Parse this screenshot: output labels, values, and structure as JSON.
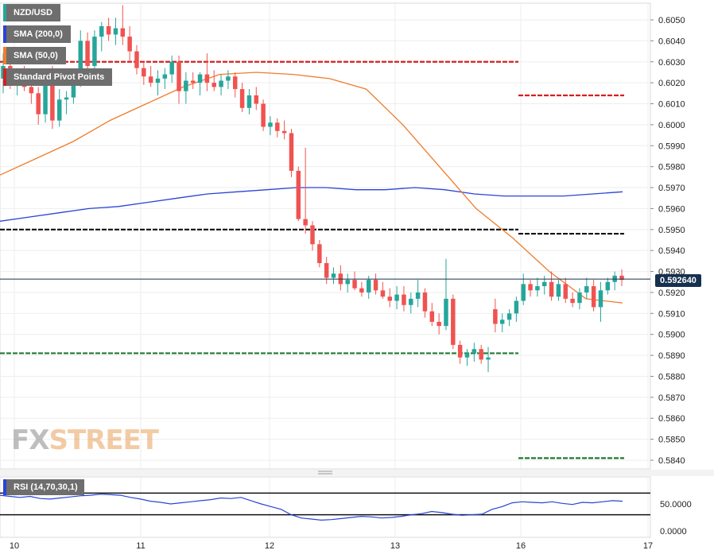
{
  "legend": {
    "symbol": "NZD/USD",
    "sma200": "SMA (200,0)",
    "sma50": "SMA (50,0)",
    "pivots": "Standard Pivot Points"
  },
  "rsi_label": "RSI (14,70,30,1)",
  "current_price": "0.592640",
  "watermark": {
    "fx": "FX",
    "street": "STREET"
  },
  "colors": {
    "bull": "#26a69a",
    "bear": "#ef5350",
    "sma200": "#2a44d6",
    "sma50": "#f07c2a",
    "pivot_red": "#d42020",
    "pivot_black": "#111111",
    "pivot_green": "#1f7a32",
    "rsi": "#2a44d6",
    "price_tag": "#16304f"
  },
  "chart_data": {
    "type": "candlestick",
    "title": "NZD/USD",
    "interval": "1h",
    "ylim": [
      0.5835,
      0.6057
    ],
    "y_ticks": [
      "0.6050",
      "0.6040",
      "0.6030",
      "0.6020",
      "0.6010",
      "0.6000",
      "0.5990",
      "0.5980",
      "0.5970",
      "0.5960",
      "0.5950",
      "0.5940",
      "0.5930",
      "0.5920",
      "0.5910",
      "0.5900",
      "0.5890",
      "0.5880",
      "0.5870",
      "0.5860",
      "0.5850",
      "0.5840"
    ],
    "x_ticks": [
      "10",
      "11",
      "12",
      "13",
      "16",
      "17"
    ],
    "last_price": 0.59264,
    "candles": [
      [
        0.6022,
        0.6034,
        0.6015,
        0.6028
      ],
      [
        0.6028,
        0.603,
        0.6017,
        0.602
      ],
      [
        0.602,
        0.6027,
        0.6014,
        0.6024
      ],
      [
        0.6024,
        0.6028,
        0.6016,
        0.6018
      ],
      [
        0.6018,
        0.6023,
        0.601,
        0.6015
      ],
      [
        0.6015,
        0.6018,
        0.6,
        0.6005
      ],
      [
        0.6005,
        0.6027,
        0.6001,
        0.6024
      ],
      [
        0.6024,
        0.6028,
        0.5998,
        0.6002
      ],
      [
        0.6002,
        0.6017,
        0.5999,
        0.6012
      ],
      [
        0.6012,
        0.6016,
        0.6005,
        0.6013
      ],
      [
        0.6013,
        0.6024,
        0.601,
        0.6022
      ],
      [
        0.6022,
        0.6045,
        0.6018,
        0.604
      ],
      [
        0.604,
        0.6044,
        0.6024,
        0.6028
      ],
      [
        0.6028,
        0.6045,
        0.6026,
        0.6042
      ],
      [
        0.6042,
        0.6049,
        0.6035,
        0.6047
      ],
      [
        0.6047,
        0.6051,
        0.604,
        0.6043
      ],
      [
        0.6043,
        0.6051,
        0.6038,
        0.6046
      ],
      [
        0.6046,
        0.6057,
        0.6038,
        0.6042
      ],
      [
        0.6042,
        0.6047,
        0.603,
        0.6035
      ],
      [
        0.6035,
        0.6038,
        0.6024,
        0.6027
      ],
      [
        0.6027,
        0.603,
        0.6019,
        0.6023
      ],
      [
        0.6023,
        0.6028,
        0.6018,
        0.602
      ],
      [
        0.602,
        0.6026,
        0.6014,
        0.6022
      ],
      [
        0.6022,
        0.6027,
        0.6017,
        0.6024
      ],
      [
        0.6024,
        0.6033,
        0.602,
        0.603
      ],
      [
        0.603,
        0.6033,
        0.601,
        0.6016
      ],
      [
        0.6016,
        0.6025,
        0.601,
        0.6021
      ],
      [
        0.6021,
        0.6025,
        0.6017,
        0.602
      ],
      [
        0.602,
        0.6025,
        0.6014,
        0.6024
      ],
      [
        0.6024,
        0.6034,
        0.6016,
        0.602
      ],
      [
        0.602,
        0.6026,
        0.6016,
        0.6018
      ],
      [
        0.6018,
        0.6024,
        0.6014,
        0.6021
      ],
      [
        0.6021,
        0.6026,
        0.6017,
        0.6023
      ],
      [
        0.6023,
        0.6025,
        0.6013,
        0.6017
      ],
      [
        0.6017,
        0.602,
        0.6006,
        0.6008
      ],
      [
        0.6008,
        0.6017,
        0.6005,
        0.6014
      ],
      [
        0.6014,
        0.6018,
        0.6007,
        0.601
      ],
      [
        0.601,
        0.6012,
        0.5997,
        0.5999
      ],
      [
        0.5999,
        0.6004,
        0.5995,
        0.6001
      ],
      [
        0.6001,
        0.6003,
        0.5994,
        0.5997
      ],
      [
        0.5997,
        0.6002,
        0.5993,
        0.5996
      ],
      [
        0.5996,
        0.5998,
        0.5975,
        0.5978
      ],
      [
        0.5978,
        0.598,
        0.5954,
        0.5955
      ],
      [
        0.5955,
        0.5989,
        0.5948,
        0.5952
      ],
      [
        0.5952,
        0.5954,
        0.594,
        0.5943
      ],
      [
        0.5943,
        0.5945,
        0.5932,
        0.5934
      ],
      [
        0.5934,
        0.5937,
        0.5924,
        0.5927
      ],
      [
        0.5927,
        0.5932,
        0.5924,
        0.5929
      ],
      [
        0.5929,
        0.5933,
        0.5921,
        0.5924
      ],
      [
        0.5924,
        0.5929,
        0.592,
        0.5926
      ],
      [
        0.5926,
        0.593,
        0.5921,
        0.5922
      ],
      [
        0.5922,
        0.5925,
        0.5918,
        0.592
      ],
      [
        0.592,
        0.5928,
        0.5917,
        0.5926
      ],
      [
        0.5926,
        0.5929,
        0.5919,
        0.5921
      ],
      [
        0.5921,
        0.5925,
        0.5917,
        0.5918
      ],
      [
        0.5918,
        0.5922,
        0.5913,
        0.5916
      ],
      [
        0.5916,
        0.5923,
        0.5912,
        0.5919
      ],
      [
        0.5919,
        0.5923,
        0.5911,
        0.5914
      ],
      [
        0.5914,
        0.592,
        0.591,
        0.5917
      ],
      [
        0.5917,
        0.5926,
        0.5913,
        0.592
      ],
      [
        0.592,
        0.5922,
        0.5908,
        0.5911
      ],
      [
        0.5911,
        0.5915,
        0.5904,
        0.5906
      ],
      [
        0.5906,
        0.591,
        0.59,
        0.5904
      ],
      [
        0.5904,
        0.5936,
        0.5902,
        0.5917
      ],
      [
        0.5917,
        0.5919,
        0.5893,
        0.5895
      ],
      [
        0.5895,
        0.5897,
        0.5886,
        0.5889
      ],
      [
        0.5889,
        0.5893,
        0.5885,
        0.5891
      ],
      [
        0.5891,
        0.5896,
        0.5887,
        0.5893
      ],
      [
        0.5893,
        0.5895,
        0.5886,
        0.5888
      ],
      [
        0.5888,
        0.5894,
        0.5882,
        0.5889
      ],
      [
        0.5912,
        0.5917,
        0.5901,
        0.5905
      ],
      [
        0.5905,
        0.591,
        0.5901,
        0.5907
      ],
      [
        0.5907,
        0.5912,
        0.5904,
        0.591
      ],
      [
        0.591,
        0.5918,
        0.5906,
        0.5916
      ],
      [
        0.5916,
        0.5929,
        0.5914,
        0.5924
      ],
      [
        0.5924,
        0.5926,
        0.5918,
        0.5921
      ],
      [
        0.5921,
        0.5927,
        0.5918,
        0.5923
      ],
      [
        0.5923,
        0.5928,
        0.5919,
        0.5925
      ],
      [
        0.5925,
        0.593,
        0.5916,
        0.5918
      ],
      [
        0.5918,
        0.5926,
        0.5916,
        0.5924
      ],
      [
        0.5924,
        0.5927,
        0.5915,
        0.5917
      ],
      [
        0.5917,
        0.592,
        0.5913,
        0.5915
      ],
      [
        0.5915,
        0.5922,
        0.5912,
        0.592
      ],
      [
        0.592,
        0.5927,
        0.5917,
        0.5923
      ],
      [
        0.5923,
        0.5926,
        0.5911,
        0.5913
      ],
      [
        0.5913,
        0.5925,
        0.5906,
        0.5921
      ],
      [
        0.5921,
        0.5927,
        0.5919,
        0.5925
      ],
      [
        0.5925,
        0.593,
        0.5921,
        0.5928
      ],
      [
        0.5928,
        0.5931,
        0.5923,
        0.5926
      ]
    ],
    "series": [
      {
        "name": "SMA (200,0)",
        "values": [
          0.5954,
          0.5956,
          0.5958,
          0.596,
          0.5961,
          0.5963,
          0.5965,
          0.5967,
          0.5968,
          0.5969,
          0.597,
          0.597,
          0.5969,
          0.5969,
          0.597,
          0.5969,
          0.5967,
          0.5966,
          0.5966,
          0.5966,
          0.5967,
          0.5968
        ]
      },
      {
        "name": "SMA (50,0)",
        "values": [
          0.5976,
          0.5984,
          0.5992,
          0.6002,
          0.601,
          0.6018,
          0.6024,
          0.6025,
          0.6024,
          0.6022,
          0.6017,
          0.6,
          0.598,
          0.596,
          0.5946,
          0.593,
          0.5917,
          0.5915
        ]
      }
    ],
    "pivots": [
      {
        "level": 0.603,
        "color": "red"
      },
      {
        "level": 0.595,
        "color": "black"
      },
      {
        "level": 0.5891,
        "color": "green"
      },
      {
        "level": 0.6014,
        "color": "red"
      },
      {
        "level": 0.5948,
        "color": "black"
      },
      {
        "level": 0.5841,
        "color": "green"
      }
    ],
    "rsi": {
      "ylim": [
        0.0,
        80.0
      ],
      "y_ticks": [
        "50.0000",
        "0.0000"
      ],
      "levels": [
        70,
        30
      ],
      "values": [
        66,
        64,
        62,
        64,
        60,
        59,
        61,
        63,
        65,
        66,
        68,
        67,
        66,
        62,
        59,
        55,
        53,
        50,
        52,
        54,
        56,
        58,
        61,
        60,
        62,
        56,
        50,
        45,
        40,
        30,
        24,
        22,
        20,
        21,
        23,
        25,
        27,
        26,
        24,
        25,
        27,
        30,
        32,
        36,
        34,
        31,
        29,
        30,
        31,
        40,
        45,
        52,
        54,
        53,
        52,
        54,
        51,
        49,
        53,
        52,
        54,
        56,
        55
      ]
    }
  }
}
